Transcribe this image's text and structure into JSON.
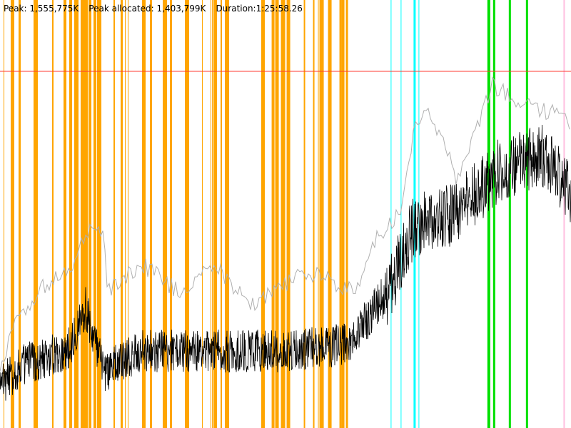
{
  "stats": {
    "peak": "Peak: 1,555,775K",
    "peak_allocated": "Peak allocated: 1,403,799K",
    "duration": "Duration:1:25:58.26"
  },
  "chart_data": {
    "type": "line",
    "title": "",
    "xlabel": "",
    "ylabel": "",
    "x_unit": "seconds",
    "y_unit": "K",
    "xlim": [
      0,
      5158.26
    ],
    "ylim": [
      0,
      1555775
    ],
    "grid": false,
    "peak_line": {
      "value": 1555775,
      "color": "#ff3b30"
    },
    "band_colors": {
      "orange": "#ffa500",
      "cyan": "#00ffff",
      "green": "#00e000",
      "pink": "#ffc0e0"
    },
    "band_regions": [
      {
        "color": "orange",
        "start": 0,
        "end": 2370
      },
      {
        "color": "orange",
        "start": 2370,
        "end": 3160
      },
      {
        "color": "cyan",
        "start": 3420,
        "end": 4130
      },
      {
        "color": "green",
        "start": 4190,
        "end": 4935
      },
      {
        "color": "pink",
        "start": 5090,
        "end": 5158
      }
    ],
    "series": [
      {
        "color": "#000000",
        "x": [
          0,
          193,
          612,
          774,
          935,
          1290,
          1934,
          2579,
          3159,
          3482,
          3740,
          4127,
          4513,
          4900,
          5158
        ],
        "y": [
          218000,
          311000,
          373000,
          560000,
          280000,
          373000,
          373000,
          373000,
          404000,
          622000,
          933000,
          996000,
          1182000,
          1245000,
          1089000
        ]
      },
      {
        "color": "#b0b0b0",
        "x": [
          0,
          129,
          387,
          645,
          774,
          935,
          967,
          1290,
          1612,
          1934,
          2257,
          2772,
          3224,
          3353,
          3611,
          3740,
          3869,
          4127,
          4449,
          4771,
          5029,
          5158
        ],
        "y": [
          249000,
          436000,
          622000,
          685000,
          856000,
          856000,
          591000,
          716000,
          591000,
          716000,
          529000,
          685000,
          591000,
          809000,
          933000,
          1307000,
          1400000,
          1089000,
          1494000,
          1400000,
          1369000,
          1338000
        ]
      }
    ]
  }
}
